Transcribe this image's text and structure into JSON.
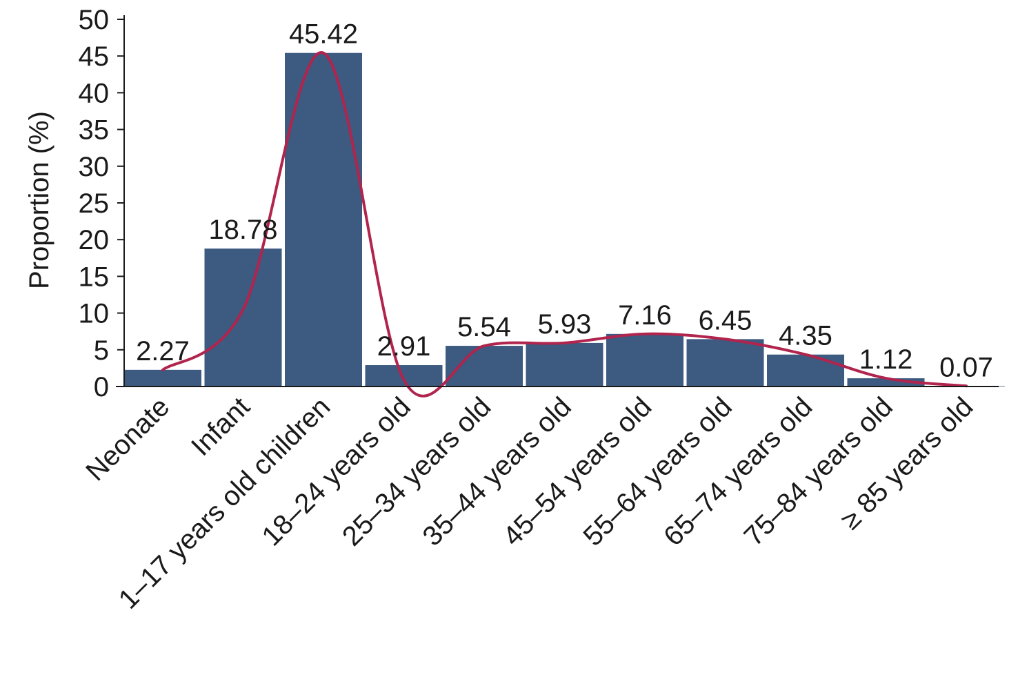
{
  "chart_data": {
    "type": "bar",
    "categories": [
      "Neonate",
      "Infant",
      "1–17 years old children",
      "18–24 years old",
      "25–34 years old",
      "35–44 years old",
      "45–54 years old",
      "55–64 years old",
      "65–74 years old",
      "75–84 years old",
      "≥ 85 years old"
    ],
    "values": [
      2.27,
      18.78,
      45.42,
      2.91,
      5.54,
      5.93,
      7.16,
      6.45,
      4.35,
      1.12,
      0.07
    ],
    "data_labels": [
      "2.27",
      "18.78",
      "45.42",
      "2.91",
      "5.54",
      "5.93",
      "7.16",
      "6.45",
      "4.35",
      "1.12",
      "0.07"
    ],
    "title": "",
    "xlabel": "",
    "ylabel": "Proportion (%)",
    "ylim": [
      0,
      50
    ],
    "yticks": [
      0,
      5,
      10,
      15,
      20,
      25,
      30,
      35,
      40,
      45,
      50
    ],
    "grid": false,
    "legend": "none",
    "trend_line": {
      "type": "smooth",
      "values": [
        2.27,
        10.5,
        45.42,
        0.9,
        5.54,
        5.93,
        7.16,
        6.45,
        4.35,
        1.12,
        0.07
      ]
    },
    "colors": {
      "bar": "#3d5a80",
      "trend": "#b0244d",
      "axis": "#1a1a1a"
    }
  }
}
